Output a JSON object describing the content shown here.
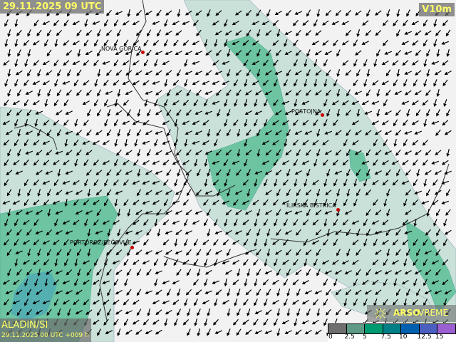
{
  "header": {
    "datetime": "29.11.2025 09 UTC",
    "parameter": "V10m"
  },
  "cities": [
    {
      "name": "NOVA GORICA"
    },
    {
      "name": "POSTOJNA"
    },
    {
      "name": "ILIRSKA BISTRICA"
    },
    {
      "name": "PORTOROŽ/SEČOVLJE"
    }
  ],
  "model": {
    "name": "ALADIN/SI",
    "run": "29.11.2025 00 UTC +009 h"
  },
  "brand": {
    "bold": "ARSO",
    "light": "VREME",
    "icon": "sun-icon"
  },
  "legend": {
    "ticks": [
      "0",
      "2.5",
      "5",
      "7.5",
      "10",
      "12.5",
      "15"
    ],
    "colors": [
      "#6e6e6e",
      "#5e9a86",
      "#009a70",
      "#007f86",
      "#0060b0",
      "#4a5fc0",
      "#9a5fd0"
    ]
  },
  "colors": {
    "light_band": "#c8e0d8",
    "mid_band": "#7fcaa8",
    "sea": "#3cb38a",
    "accent": "#ffff66"
  }
}
